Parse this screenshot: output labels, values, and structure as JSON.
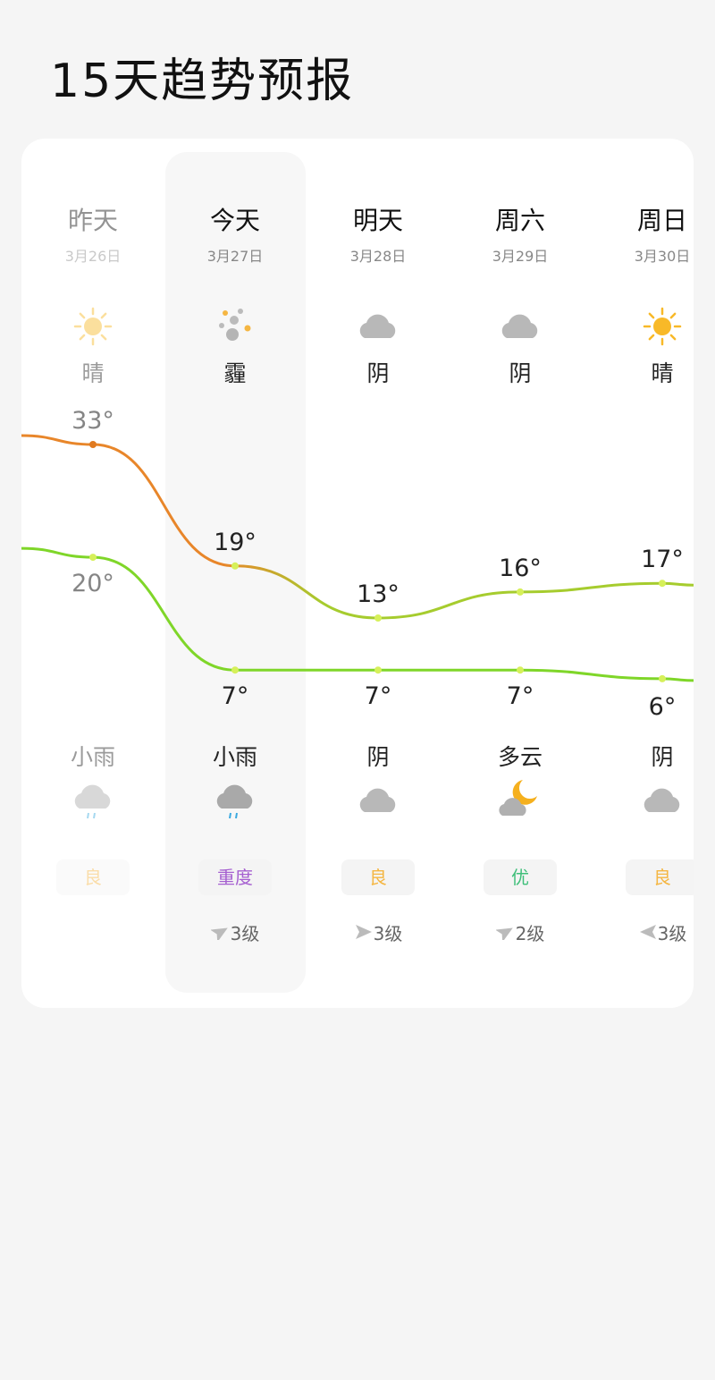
{
  "header": {
    "title": "15天趋势预报"
  },
  "days": [
    {
      "day": "昨天",
      "date": "3月26日",
      "weather_day": "晴",
      "icon_day": "sun-icon",
      "high": 33,
      "low": 20,
      "weather_night": "小雨",
      "icon_night": "light-rain-icon",
      "aqi": "良",
      "aqi_color": "#f5b642",
      "wind": "",
      "wind_dir": ""
    },
    {
      "day": "今天",
      "date": "3月27日",
      "weather_day": "霾",
      "icon_day": "haze-icon",
      "high": 19,
      "low": 7,
      "weather_night": "小雨",
      "icon_night": "light-rain-icon",
      "aqi": "重度",
      "aqi_color": "#a55fd0",
      "wind": "3级",
      "wind_dir": "northwest"
    },
    {
      "day": "明天",
      "date": "3月28日",
      "weather_day": "阴",
      "icon_day": "cloud-icon",
      "high": 13,
      "low": 7,
      "weather_night": "阴",
      "icon_night": "cloud-icon",
      "aqi": "良",
      "aqi_color": "#f5b642",
      "wind": "3级",
      "wind_dir": "west"
    },
    {
      "day": "周六",
      "date": "3月29日",
      "weather_day": "阴",
      "icon_day": "cloud-icon",
      "high": 16,
      "low": 7,
      "weather_night": "多云",
      "icon_night": "partly-cloudy-night-icon",
      "aqi": "优",
      "aqi_color": "#3fbf7a",
      "wind": "2级",
      "wind_dir": "northwest"
    },
    {
      "day": "周日",
      "date": "3月30日",
      "weather_day": "晴",
      "icon_day": "sun-icon",
      "high": 17,
      "low": 6,
      "weather_night": "阴",
      "icon_night": "cloud-icon",
      "aqi": "良",
      "aqi_color": "#f5b642",
      "wind": "3级",
      "wind_dir": "east"
    }
  ],
  "unit": "°",
  "colors": {
    "high_start": "#e8862a",
    "high_end": "#a6cc2e",
    "low": "#7fd629",
    "dot": "#d6f05a"
  }
}
